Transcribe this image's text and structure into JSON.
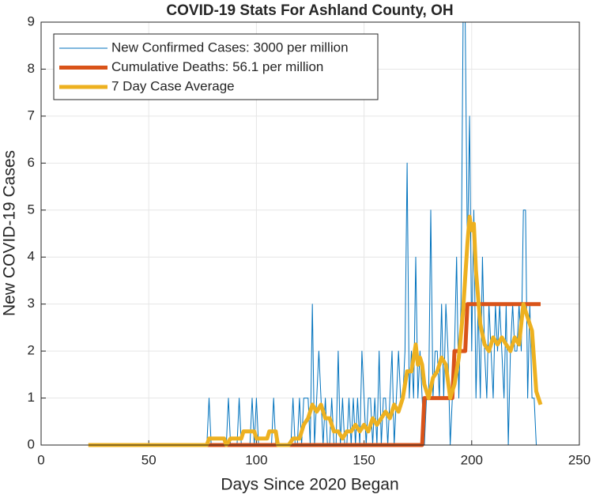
{
  "chart_data": {
    "type": "line",
    "title": "COVID-19 Stats For Ashland County, OH",
    "x_label": "Days Since 2020 Began",
    "y_label": "New COVID-19 Cases",
    "xlim": [
      0,
      250
    ],
    "xticks": [
      0,
      50,
      100,
      150,
      200,
      250
    ],
    "ylim": [
      0,
      9
    ],
    "yticks": [
      0,
      1,
      2,
      3,
      4,
      5,
      6,
      7,
      8,
      9
    ],
    "grid": true,
    "legend": "upper left",
    "x": [
      22,
      23,
      24,
      25,
      26,
      27,
      28,
      29,
      30,
      31,
      32,
      33,
      34,
      35,
      36,
      37,
      38,
      39,
      40,
      41,
      42,
      43,
      44,
      45,
      46,
      47,
      48,
      49,
      50,
      51,
      52,
      53,
      54,
      55,
      56,
      57,
      58,
      59,
      60,
      61,
      62,
      63,
      64,
      65,
      66,
      67,
      68,
      69,
      70,
      71,
      72,
      73,
      74,
      75,
      76,
      77,
      78,
      79,
      80,
      81,
      82,
      83,
      84,
      85,
      86,
      87,
      88,
      89,
      90,
      91,
      92,
      93,
      94,
      95,
      96,
      97,
      98,
      99,
      100,
      101,
      102,
      103,
      104,
      105,
      106,
      107,
      108,
      109,
      110,
      111,
      112,
      113,
      114,
      115,
      116,
      117,
      118,
      119,
      120,
      121,
      122,
      123,
      124,
      125,
      126,
      127,
      128,
      129,
      130,
      131,
      132,
      133,
      134,
      135,
      136,
      137,
      138,
      139,
      140,
      141,
      142,
      143,
      144,
      145,
      146,
      147,
      148,
      149,
      150,
      151,
      152,
      153,
      154,
      155,
      156,
      157,
      158,
      159,
      160,
      161,
      162,
      163,
      164,
      165,
      166,
      167,
      168,
      169,
      170,
      171,
      172,
      173,
      174,
      175,
      176,
      177,
      178,
      179,
      180,
      181,
      182,
      183,
      184,
      185,
      186,
      187,
      188,
      189,
      190,
      191,
      192,
      193,
      194,
      195,
      196,
      197,
      198,
      199,
      200,
      201,
      202,
      203,
      204,
      205,
      206,
      207,
      208,
      209,
      210,
      211,
      212,
      213,
      214,
      215,
      216,
      217,
      218,
      219,
      220,
      221,
      222,
      223,
      224,
      225,
      226,
      227,
      228,
      229,
      230,
      231,
      232
    ],
    "series": [
      {
        "name": "New Confirmed Cases: 3000 per million",
        "color": "#0072bd",
        "width": 1,
        "values": [
          0,
          0,
          0,
          0,
          0,
          0,
          0,
          0,
          0,
          0,
          0,
          0,
          0,
          0,
          0,
          0,
          0,
          0,
          0,
          0,
          0,
          0,
          0,
          0,
          0,
          0,
          0,
          0,
          0,
          0,
          0,
          0,
          0,
          0,
          0,
          0,
          0,
          0,
          0,
          0,
          0,
          0,
          0,
          0,
          0,
          0,
          0,
          0,
          0,
          0,
          0,
          0,
          0,
          0,
          0,
          0,
          1,
          0,
          0,
          0,
          0,
          0,
          0,
          0,
          0,
          1,
          0,
          0,
          0,
          0,
          1,
          0,
          0,
          0,
          0,
          0,
          1,
          0,
          1,
          0,
          0,
          0,
          0,
          0,
          0,
          0,
          1,
          0,
          0,
          0,
          0,
          0,
          0,
          0,
          0,
          1,
          0,
          0,
          1,
          0,
          1,
          1,
          1,
          0,
          3,
          0,
          1,
          2,
          1,
          0,
          1,
          0,
          0,
          1,
          0,
          0,
          2,
          0,
          1,
          0,
          0,
          1,
          0,
          1,
          0,
          1,
          0,
          2,
          1,
          0,
          1,
          1,
          0,
          1,
          0,
          2,
          0,
          1,
          1,
          0,
          1,
          2,
          0,
          1,
          2,
          1,
          1,
          2,
          6,
          1,
          2,
          1,
          4,
          1,
          2,
          1,
          0,
          1,
          1,
          5,
          1,
          2,
          2,
          1,
          3,
          1,
          3,
          2,
          0,
          1,
          2,
          4,
          1,
          3,
          9,
          9,
          4,
          7,
          2,
          5,
          1,
          3,
          1,
          4,
          2,
          1,
          3,
          2,
          1,
          3,
          2,
          3,
          2,
          1,
          3,
          0,
          2,
          3,
          2,
          2,
          3,
          2,
          5,
          5,
          1,
          3,
          1,
          1,
          0,
          0,
          0
        ]
      },
      {
        "name": "Cumulative Deaths: 56.1 per million",
        "color": "#d95319",
        "width": 5,
        "values": [
          0,
          0,
          0,
          0,
          0,
          0,
          0,
          0,
          0,
          0,
          0,
          0,
          0,
          0,
          0,
          0,
          0,
          0,
          0,
          0,
          0,
          0,
          0,
          0,
          0,
          0,
          0,
          0,
          0,
          0,
          0,
          0,
          0,
          0,
          0,
          0,
          0,
          0,
          0,
          0,
          0,
          0,
          0,
          0,
          0,
          0,
          0,
          0,
          0,
          0,
          0,
          0,
          0,
          0,
          0,
          0,
          0,
          0,
          0,
          0,
          0,
          0,
          0,
          0,
          0,
          0,
          0,
          0,
          0,
          0,
          0,
          0,
          0,
          0,
          0,
          0,
          0,
          0,
          0,
          0,
          0,
          0,
          0,
          0,
          0,
          0,
          0,
          0,
          0,
          0,
          0,
          0,
          0,
          0,
          0,
          0,
          0,
          0,
          0,
          0,
          0,
          0,
          0,
          0,
          0,
          0,
          0,
          0,
          0,
          0,
          0,
          0,
          0,
          0,
          0,
          0,
          0,
          0,
          0,
          0,
          0,
          0,
          0,
          0,
          0,
          0,
          0,
          0,
          0,
          0,
          0,
          0,
          0,
          0,
          0,
          0,
          0,
          0,
          0,
          0,
          0,
          0,
          0,
          0,
          0,
          0,
          0,
          0,
          0,
          0,
          0,
          0,
          0,
          0,
          0,
          0,
          1,
          1,
          1,
          1,
          1,
          1,
          1,
          1,
          1,
          1,
          1,
          1,
          1,
          1,
          2,
          2,
          2,
          2,
          2,
          2,
          3,
          3,
          3,
          3,
          3,
          3,
          3,
          3,
          3,
          3,
          3,
          3,
          3,
          3,
          3,
          3,
          3,
          3,
          3,
          3,
          3,
          3,
          3,
          3,
          3,
          3,
          3,
          3,
          3,
          3,
          3,
          3,
          3,
          3,
          3
        ]
      },
      {
        "name": "7 Day Case Average",
        "color": "#edb120",
        "width": 5,
        "x": [
          22,
          77,
          78,
          85,
          86,
          88,
          93,
          94,
          99,
          100,
          105,
          106,
          109,
          110,
          115,
          117,
          120,
          122,
          124,
          126,
          128,
          130,
          132,
          134,
          136,
          138,
          140,
          142,
          144,
          146,
          148,
          150,
          152,
          154,
          156,
          158,
          160,
          162,
          164,
          166,
          168,
          170,
          172,
          174,
          175,
          176,
          177,
          178,
          180,
          182,
          184,
          186,
          188,
          190,
          192,
          194,
          196,
          197,
          198,
          199,
          200,
          201,
          202,
          204,
          206,
          208,
          210,
          212,
          214,
          216,
          218,
          220,
          222,
          224,
          226,
          228,
          230,
          232
        ],
        "values": [
          0,
          0,
          0.14,
          0.14,
          0,
          0.14,
          0.14,
          0.29,
          0.29,
          0.14,
          0.14,
          0.29,
          0.29,
          0,
          0,
          0.14,
          0.14,
          0.43,
          0.57,
          0.86,
          0.71,
          0.86,
          0.57,
          0.57,
          0.29,
          0.29,
          0.14,
          0.29,
          0.29,
          0.43,
          0.29,
          0.43,
          0.29,
          0.57,
          0.43,
          0.57,
          0.71,
          0.57,
          0.86,
          0.71,
          1.0,
          1.57,
          1.57,
          2.14,
          1.71,
          1.86,
          1.71,
          1.29,
          1.0,
          1.43,
          1.57,
          1.86,
          1.71,
          1.0,
          1.29,
          1.86,
          2.86,
          3.57,
          4.29,
          4.86,
          4.57,
          4.71,
          3.71,
          2.57,
          2.14,
          2.0,
          2.29,
          2.14,
          2.29,
          2.14,
          2.0,
          2.29,
          2.14,
          3.0,
          2.71,
          2.43,
          1.14,
          0.86
        ]
      }
    ]
  }
}
